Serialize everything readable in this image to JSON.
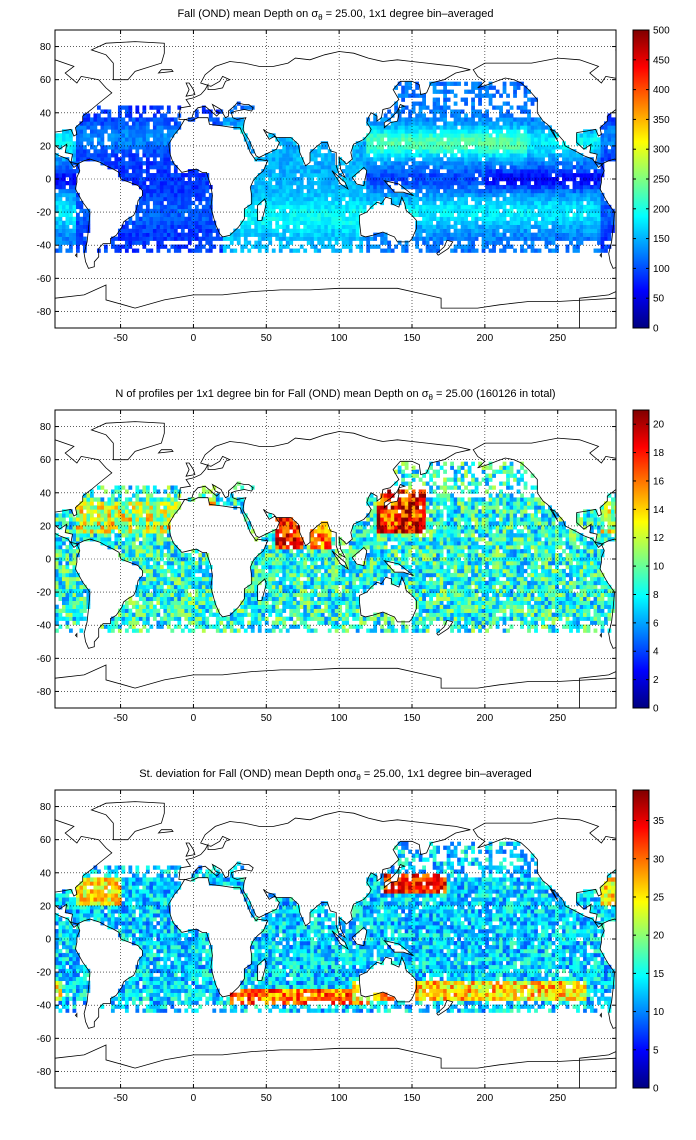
{
  "chart_data": [
    {
      "type": "heatmap",
      "title_parts": {
        "before": "Fall (OND) mean Depth on ",
        "sym": "σ",
        "sub": "θ",
        "after": " = 25.00, 1x1 degree bin–averaged"
      },
      "xlim": [
        -95,
        290
      ],
      "ylim": [
        -90,
        90
      ],
      "xticks": [
        "-50",
        "0",
        "50",
        "100",
        "150",
        "200",
        "250"
      ],
      "xtick_values": [
        -50,
        0,
        50,
        100,
        150,
        200,
        250
      ],
      "yticks": [
        "80",
        "60",
        "40",
        "20",
        "0",
        "-20",
        "-40",
        "-60",
        "-80"
      ],
      "ytick_values": [
        80,
        60,
        40,
        20,
        0,
        -20,
        -40,
        -60,
        -80
      ],
      "grid": true,
      "colorbar": {
        "min": 0,
        "max": 500,
        "ticks": [
          "0",
          "50",
          "100",
          "150",
          "200",
          "250",
          "300",
          "350",
          "400",
          "450",
          "500"
        ],
        "tick_values": [
          0,
          50,
          100,
          150,
          200,
          250,
          300,
          350,
          400,
          450,
          500
        ]
      }
    },
    {
      "type": "heatmap",
      "title_parts": {
        "before": "N of profiles per 1x1 degree bin for Fall (OND) mean Depth on ",
        "sym": "σ",
        "sub": "θ",
        "after": " = 25.00 (160126 in total)"
      },
      "xlim": [
        -95,
        290
      ],
      "ylim": [
        -90,
        90
      ],
      "xticks": [
        "-50",
        "0",
        "50",
        "100",
        "150",
        "200",
        "250"
      ],
      "xtick_values": [
        -50,
        0,
        50,
        100,
        150,
        200,
        250
      ],
      "yticks": [
        "80",
        "60",
        "40",
        "20",
        "0",
        "-20",
        "-40",
        "-60",
        "-80"
      ],
      "ytick_values": [
        80,
        60,
        40,
        20,
        0,
        -20,
        -40,
        -60,
        -80
      ],
      "grid": true,
      "colorbar": {
        "min": 0,
        "max": 21,
        "ticks": [
          "0",
          "2",
          "4",
          "6",
          "8",
          "10",
          "12",
          "14",
          "16",
          "18",
          "20"
        ],
        "tick_values": [
          0,
          2,
          4,
          6,
          8,
          10,
          12,
          14,
          16,
          18,
          20
        ]
      }
    },
    {
      "type": "heatmap",
      "title_parts": {
        "before": "St. deviation for Fall (OND) mean Depth on",
        "sym": "σ",
        "sub": "θ",
        "after": " = 25.00, 1x1 degree bin–averaged"
      },
      "xlim": [
        -95,
        290
      ],
      "ylim": [
        -90,
        90
      ],
      "xticks": [
        "-50",
        "0",
        "50",
        "100",
        "150",
        "200",
        "250"
      ],
      "xtick_values": [
        -50,
        0,
        50,
        100,
        150,
        200,
        250
      ],
      "yticks": [
        "80",
        "60",
        "40",
        "20",
        "0",
        "-20",
        "-40",
        "-60",
        "-80"
      ],
      "ytick_values": [
        80,
        60,
        40,
        20,
        0,
        -20,
        -40,
        -60,
        -80
      ],
      "grid": true,
      "colorbar": {
        "min": 0,
        "max": 39,
        "ticks": [
          "0",
          "5",
          "10",
          "15",
          "20",
          "25",
          "30",
          "35"
        ],
        "tick_values": [
          0,
          5,
          10,
          15,
          20,
          25,
          30,
          35
        ]
      }
    }
  ]
}
